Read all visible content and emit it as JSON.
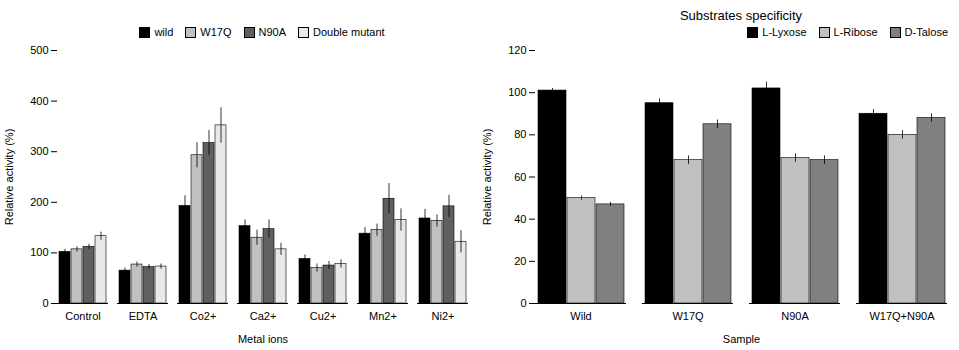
{
  "chart_data": [
    {
      "type": "bar",
      "xlabel": "Metal ions",
      "ylabel": "Relative activity (%)",
      "categories": [
        "Control",
        "EDTA",
        "Co2+",
        "Ca2+",
        "Cu2+",
        "Mn2+",
        "Ni2+"
      ],
      "series": [
        {
          "name": "wild",
          "color": "#000000",
          "values": [
            102,
            65,
            193,
            153,
            88,
            138,
            168
          ],
          "errors": [
            5,
            5,
            20,
            12,
            8,
            12,
            18
          ]
        },
        {
          "name": "W17Q",
          "color": "#c0c0c0",
          "values": [
            107,
            77,
            293,
            130,
            70,
            145,
            163
          ],
          "errors": [
            5,
            5,
            25,
            15,
            8,
            12,
            12
          ]
        },
        {
          "name": "N90A",
          "color": "#606060",
          "values": [
            112,
            72,
            317,
            147,
            75,
            207,
            192
          ],
          "errors": [
            5,
            5,
            25,
            18,
            8,
            30,
            22
          ]
        },
        {
          "name": "Double mutant",
          "color": "#e8e8e8",
          "values": [
            133,
            73,
            352,
            107,
            78,
            165,
            122
          ],
          "errors": [
            8,
            5,
            35,
            12,
            8,
            22,
            22
          ]
        }
      ],
      "ylim": [
        0,
        500
      ],
      "yticks": [
        0,
        100,
        200,
        300,
        400,
        500
      ],
      "legend": "upper center",
      "grid": false
    },
    {
      "type": "bar",
      "title": "Substrates specificity",
      "xlabel": "Sample",
      "ylabel": "Relative activity (%)",
      "categories": [
        "Wild",
        "W17Q",
        "N90A",
        "W17Q+N90A"
      ],
      "series": [
        {
          "name": "L-Lyxose",
          "color": "#000000",
          "values": [
            101,
            95,
            102,
            90
          ],
          "errors": [
            1,
            2,
            3,
            2
          ]
        },
        {
          "name": "L-Ribose",
          "color": "#c0c0c0",
          "values": [
            50,
            68,
            69,
            80
          ],
          "errors": [
            1,
            2,
            2,
            2
          ]
        },
        {
          "name": "D-Talose",
          "color": "#808080",
          "values": [
            47,
            85,
            68,
            88
          ],
          "errors": [
            1,
            2,
            2,
            2
          ]
        }
      ],
      "ylim": [
        0,
        120
      ],
      "yticks": [
        0,
        20,
        40,
        60,
        80,
        100,
        120
      ],
      "legend": "upper right",
      "grid": false
    }
  ]
}
